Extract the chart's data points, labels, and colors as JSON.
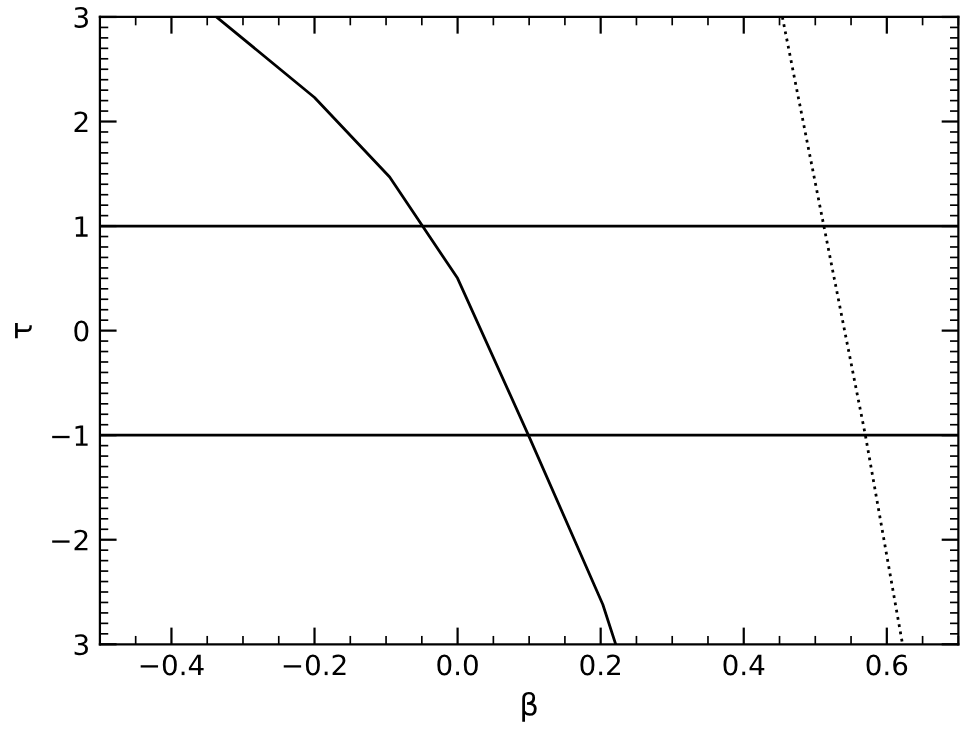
{
  "chart_data": {
    "type": "line",
    "xlabel": "β",
    "ylabel": "τ",
    "series": [
      {
        "color": "#000000",
        "line_style": "solid",
        "x": [
          -0.337,
          -0.2,
          -0.095,
          0.0,
          0.101,
          0.203,
          0.221
        ],
        "values": [
          3.0,
          2.23,
          1.47,
          0.5,
          -1.03,
          -2.62,
          -3.0
        ]
      },
      {
        "color": "#000000",
        "line_style": "dotted",
        "x": [
          0.454,
          0.512,
          0.57,
          0.622
        ],
        "values": [
          3.0,
          1.0,
          -1.0,
          -3.0
        ]
      }
    ],
    "ref_lines": [
      {
        "axis": "y",
        "value": 1,
        "color": "#000000"
      },
      {
        "axis": "y",
        "value": -1,
        "color": "#000000"
      }
    ],
    "xlim": [
      -0.5,
      0.7
    ],
    "xticks": [
      {
        "value": -0.4,
        "label": "−0.4"
      },
      {
        "value": -0.2,
        "label": "−0.2"
      },
      {
        "value": 0.0,
        "label": "0.0"
      },
      {
        "value": 0.2,
        "label": "0.2"
      },
      {
        "value": 0.4,
        "label": "0.4"
      },
      {
        "value": 0.6,
        "label": "0.6"
      }
    ],
    "ylim": [
      -3,
      3
    ],
    "yticks": [
      {
        "value": -3,
        "label": "3"
      },
      {
        "value": -2,
        "label": "−2"
      },
      {
        "value": -1,
        "label": "−1"
      },
      0,
      1,
      2,
      3
    ],
    "grid": false
  }
}
